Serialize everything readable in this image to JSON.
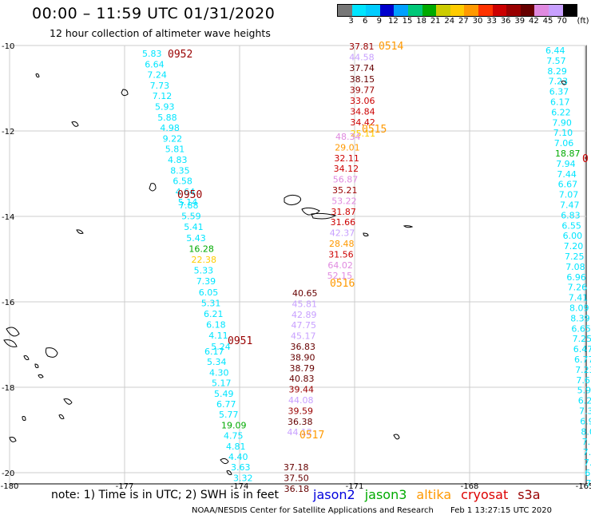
{
  "header": {
    "title": "00:00 – 11:59 UTC 01/31/2020",
    "subtitle": "12 hour collection of altimeter wave heights"
  },
  "colorbar": {
    "unit": "(ft)",
    "ticks": [
      "3",
      "6",
      "9",
      "12",
      "15",
      "18",
      "21",
      "24",
      "27",
      "30",
      "33",
      "36",
      "39",
      "42",
      "45",
      "70"
    ],
    "colors": [
      "#777777",
      "#00e5ff",
      "#00ccff",
      "#0000cc",
      "#00a0ff",
      "#00c878",
      "#00aa00",
      "#cccc00",
      "#ffcc00",
      "#ff9900",
      "#ff3300",
      "#cc0000",
      "#990000",
      "#660000",
      "#e08ae0",
      "#c8a0ff",
      "#000000"
    ]
  },
  "map": {
    "lat_labels": [
      "-10",
      "-12",
      "-14",
      "-16",
      "-18",
      "-20"
    ],
    "lon_labels": [
      "-180",
      "-177",
      "-174",
      "-171",
      "-168",
      "-165"
    ],
    "lon_range": [
      -180,
      -165
    ],
    "lat_range": [
      -20,
      -10
    ]
  },
  "tracks": [
    {
      "pass": "0952",
      "pass_color": "#990000",
      "labels": [
        {
          "t": "5.83",
          "c": "#00e5ff"
        },
        {
          "t": "6.64",
          "c": "#00e5ff"
        },
        {
          "t": "7.24",
          "c": "#00e5ff"
        },
        {
          "t": "7.73",
          "c": "#00e5ff"
        },
        {
          "t": "7.12",
          "c": "#00e5ff"
        },
        {
          "t": "5.93",
          "c": "#00e5ff"
        },
        {
          "t": "5.88",
          "c": "#00e5ff"
        },
        {
          "t": "4.98",
          "c": "#00e5ff"
        },
        {
          "t": "9.22",
          "c": "#00e5ff"
        },
        {
          "t": "5.81",
          "c": "#00e5ff"
        },
        {
          "t": "4.83",
          "c": "#00e5ff"
        },
        {
          "t": "8.35",
          "c": "#00e5ff"
        },
        {
          "t": "6.58",
          "c": "#00e5ff"
        },
        {
          "t": "4.64",
          "c": "#00e5ff"
        },
        {
          "t": "5.14",
          "c": "#00e5ff"
        }
      ]
    },
    {
      "pass": "0951",
      "pass_color": "#990000",
      "labels": [
        {
          "t": "7.88",
          "c": "#00e5ff"
        },
        {
          "t": "5.59",
          "c": "#00e5ff"
        },
        {
          "t": "5.41",
          "c": "#00e5ff"
        },
        {
          "t": "5.43",
          "c": "#00e5ff"
        },
        {
          "t": "16.28",
          "c": "#00aa00"
        },
        {
          "t": "22.38",
          "c": "#ffcc00"
        },
        {
          "t": "5.33",
          "c": "#00e5ff"
        },
        {
          "t": "7.39",
          "c": "#00e5ff"
        },
        {
          "t": "6.05",
          "c": "#00e5ff"
        },
        {
          "t": "5.31",
          "c": "#00e5ff"
        },
        {
          "t": "6.21",
          "c": "#00e5ff"
        },
        {
          "t": "6.18",
          "c": "#00e5ff"
        },
        {
          "t": "4.11",
          "c": "#00e5ff"
        },
        {
          "t": "5.24",
          "c": "#00e5ff"
        }
      ]
    },
    {
      "pass": "0950",
      "pass_color": "#990000",
      "labels": [
        {
          "t": "6.17",
          "c": "#00e5ff"
        },
        {
          "t": "5.34",
          "c": "#00e5ff"
        },
        {
          "t": "4.30",
          "c": "#00e5ff"
        },
        {
          "t": "5.17",
          "c": "#00e5ff"
        },
        {
          "t": "5.49",
          "c": "#00e5ff"
        },
        {
          "t": "6.77",
          "c": "#00e5ff"
        },
        {
          "t": "5.77",
          "c": "#00e5ff"
        },
        {
          "t": "19.09",
          "c": "#00aa00"
        },
        {
          "t": "4.75",
          "c": "#00e5ff"
        },
        {
          "t": "4.81",
          "c": "#00e5ff"
        },
        {
          "t": "4.40",
          "c": "#00e5ff"
        },
        {
          "t": "3.63",
          "c": "#00e5ff"
        },
        {
          "t": "3.32",
          "c": "#00e5ff"
        }
      ]
    },
    {
      "pass": "0514",
      "pass_color": "#ff9900",
      "labels": [
        {
          "t": "37.81",
          "c": "#990000"
        },
        {
          "t": "44.58",
          "c": "#c8a0ff"
        },
        {
          "t": "37.74",
          "c": "#660000"
        },
        {
          "t": "38.15",
          "c": "#660000"
        },
        {
          "t": "39.77",
          "c": "#990000"
        },
        {
          "t": "33.06",
          "c": "#cc0000"
        },
        {
          "t": "34.84",
          "c": "#cc0000"
        },
        {
          "t": "34.42",
          "c": "#cc0000"
        },
        {
          "t": "25.11",
          "c": "#ffcc00"
        }
      ]
    },
    {
      "pass": "0515",
      "pass_color": "#ff9900",
      "labels": [
        {
          "t": "48.34",
          "c": "#e08ae0"
        },
        {
          "t": "29.01",
          "c": "#ff9900"
        },
        {
          "t": "32.11",
          "c": "#cc0000"
        },
        {
          "t": "34.12",
          "c": "#cc0000"
        },
        {
          "t": "56.87",
          "c": "#e08ae0"
        },
        {
          "t": "35.21",
          "c": "#990000"
        },
        {
          "t": "53.22",
          "c": "#e08ae0"
        },
        {
          "t": "31.87",
          "c": "#cc0000"
        },
        {
          "t": "31.66",
          "c": "#cc0000"
        },
        {
          "t": "42.37",
          "c": "#c8a0ff"
        },
        {
          "t": "28.48",
          "c": "#ff9900"
        },
        {
          "t": "31.56",
          "c": "#cc0000"
        },
        {
          "t": "64.02",
          "c": "#e08ae0"
        },
        {
          "t": "52.15",
          "c": "#e08ae0"
        }
      ]
    },
    {
      "pass": "0516",
      "pass_color": "#ff9900",
      "labels": [
        {
          "t": "40.65",
          "c": "#660000"
        },
        {
          "t": "45.81",
          "c": "#c8a0ff"
        },
        {
          "t": "42.89",
          "c": "#c8a0ff"
        },
        {
          "t": "47.75",
          "c": "#c8a0ff"
        },
        {
          "t": "45.17",
          "c": "#c8a0ff"
        },
        {
          "t": "36.83",
          "c": "#660000"
        },
        {
          "t": "38.90",
          "c": "#660000"
        },
        {
          "t": "38.79",
          "c": "#660000"
        },
        {
          "t": "40.83",
          "c": "#660000"
        },
        {
          "t": "39.44",
          "c": "#990000"
        },
        {
          "t": "44.08",
          "c": "#c8a0ff"
        },
        {
          "t": "39.59",
          "c": "#990000"
        },
        {
          "t": "36.38",
          "c": "#660000"
        },
        {
          "t": "44.12",
          "c": "#c8a0ff"
        }
      ]
    },
    {
      "pass": "0517",
      "pass_color": "#ff9900",
      "labels": [
        {
          "t": "37.18",
          "c": "#660000"
        },
        {
          "t": "37.50",
          "c": "#660000"
        },
        {
          "t": "36.18",
          "c": "#660000"
        }
      ]
    },
    {
      "pass": "",
      "pass_color": "#990000",
      "labels": [
        {
          "t": "6.44",
          "c": "#00e5ff"
        },
        {
          "t": "7.57",
          "c": "#00e5ff"
        },
        {
          "t": "8.29",
          "c": "#00e5ff"
        },
        {
          "t": "7.23",
          "c": "#00e5ff"
        },
        {
          "t": "6.37",
          "c": "#00e5ff"
        },
        {
          "t": "6.17",
          "c": "#00e5ff"
        },
        {
          "t": "6.22",
          "c": "#00e5ff"
        },
        {
          "t": "7.90",
          "c": "#00e5ff"
        },
        {
          "t": "7.10",
          "c": "#00e5ff"
        },
        {
          "t": "7.06",
          "c": "#00e5ff"
        },
        {
          "t": "18.87",
          "c": "#00aa00"
        },
        {
          "t": "7.94",
          "c": "#00e5ff"
        },
        {
          "t": "7.44",
          "c": "#00e5ff"
        },
        {
          "t": "6.67",
          "c": "#00e5ff"
        },
        {
          "t": "7.07",
          "c": "#00e5ff"
        },
        {
          "t": "7.47",
          "c": "#00e5ff"
        },
        {
          "t": "6.83",
          "c": "#00e5ff"
        },
        {
          "t": "6.55",
          "c": "#00e5ff"
        },
        {
          "t": "6.00",
          "c": "#00e5ff"
        },
        {
          "t": "7.20",
          "c": "#00e5ff"
        },
        {
          "t": "7.25",
          "c": "#00e5ff"
        },
        {
          "t": "7.08",
          "c": "#00e5ff"
        },
        {
          "t": "6.96",
          "c": "#00e5ff"
        },
        {
          "t": "7.26",
          "c": "#00e5ff"
        },
        {
          "t": "7.41",
          "c": "#00e5ff"
        },
        {
          "t": "8.09",
          "c": "#00e5ff"
        },
        {
          "t": "8.39",
          "c": "#00e5ff"
        },
        {
          "t": "6.65",
          "c": "#00e5ff"
        },
        {
          "t": "7.25",
          "c": "#00e5ff"
        },
        {
          "t": "6.47",
          "c": "#00e5ff"
        },
        {
          "t": "6.77",
          "c": "#00e5ff"
        },
        {
          "t": "7.23",
          "c": "#00e5ff"
        },
        {
          "t": "7.61",
          "c": "#00e5ff"
        },
        {
          "t": "5.96",
          "c": "#00e5ff"
        },
        {
          "t": "6.21",
          "c": "#00e5ff"
        },
        {
          "t": "7.3",
          "c": "#00e5ff"
        },
        {
          "t": "6.9",
          "c": "#00e5ff"
        },
        {
          "t": "8.0",
          "c": "#00e5ff"
        },
        {
          "t": "7.2",
          "c": "#00e5ff"
        },
        {
          "t": "7.6",
          "c": "#00e5ff"
        },
        {
          "t": "7.3",
          "c": "#00e5ff"
        },
        {
          "t": "6.9",
          "c": "#00e5ff"
        },
        {
          "t": "7.0",
          "c": "#00e5ff"
        }
      ]
    }
  ],
  "edge_pass": "0",
  "note": "note: 1) Time is in UTC; 2) SWH is in feet",
  "legend": [
    {
      "name": "jason2",
      "color": "#0000dd"
    },
    {
      "name": "jason3",
      "color": "#00aa00"
    },
    {
      "name": "altika",
      "color": "#ff9900"
    },
    {
      "name": "cryosat",
      "color": "#dd0000"
    },
    {
      "name": "s3a",
      "color": "#990000"
    }
  ],
  "footer": {
    "credit": "NOAA/NESDIS Center for Satellite Applications and Research",
    "timestamp": "Feb  1 13:27:15 UTC 2020"
  }
}
